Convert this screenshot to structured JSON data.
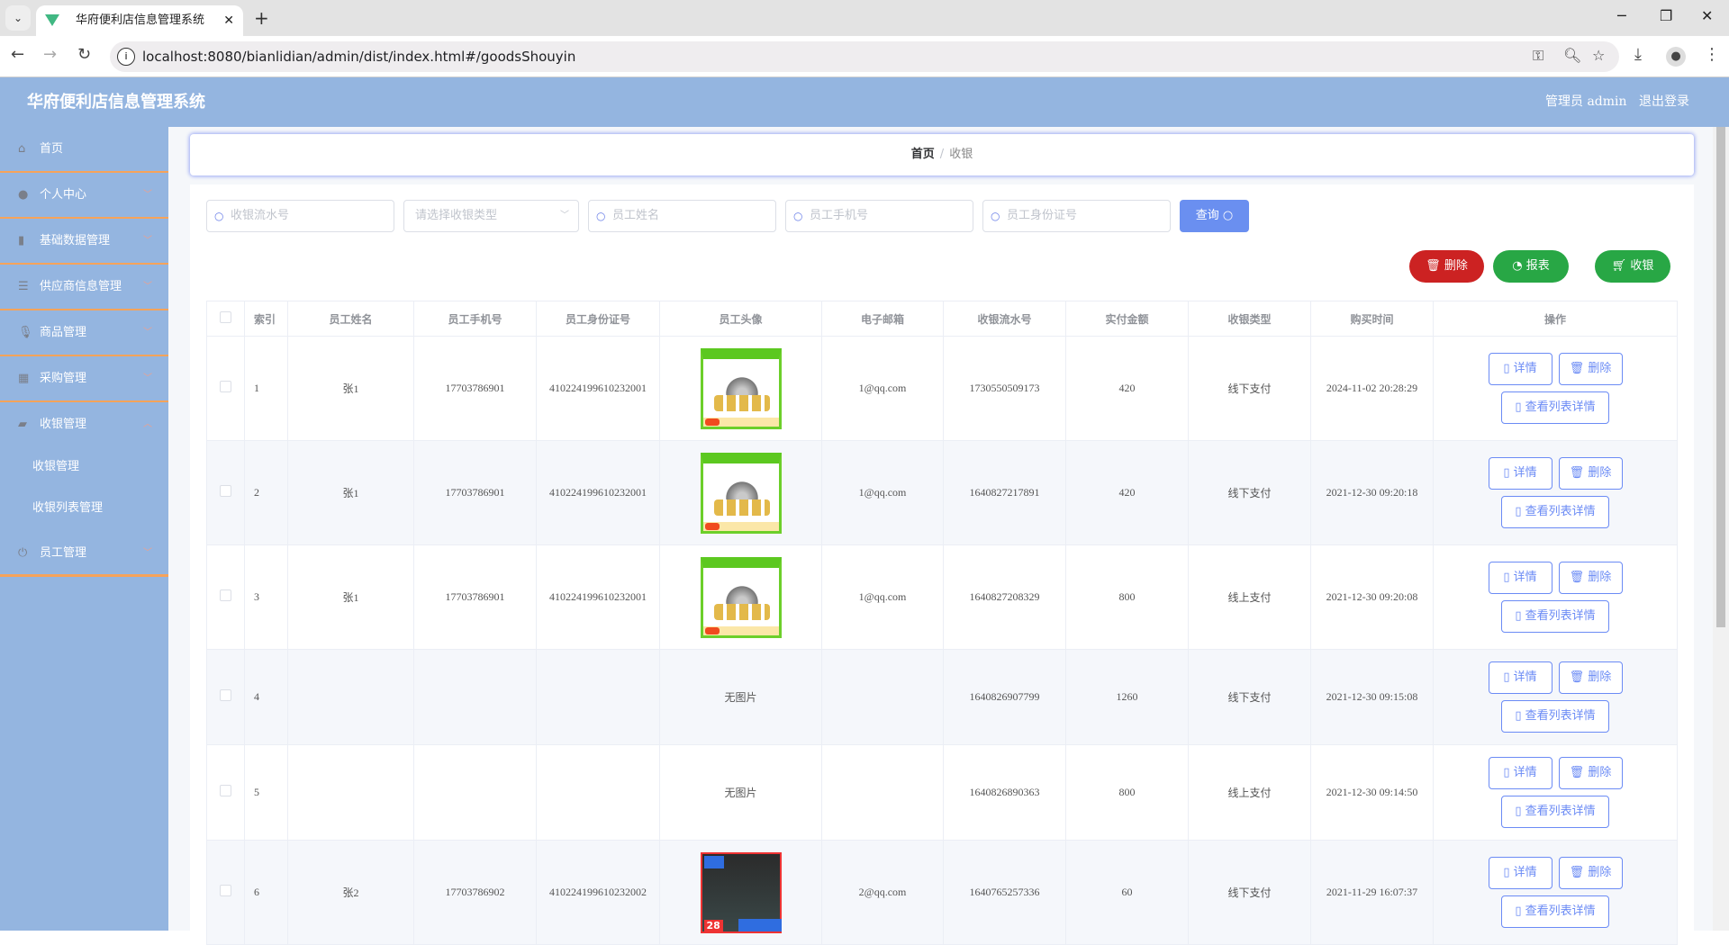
{
  "browser": {
    "tab_title": "华府便利店信息管理系统",
    "url": "localhost:8080/bianlidian/admin/dist/index.html#/goodsShouyin"
  },
  "header": {
    "title": "华府便利店信息管理系统",
    "user": "管理员 admin",
    "logout": "退出登录"
  },
  "sidebar": {
    "items": [
      {
        "label": "首页",
        "icon": "home-icon"
      },
      {
        "label": "个人中心",
        "icon": "user-icon"
      },
      {
        "label": "基础数据管理",
        "icon": "bar-chart-icon"
      },
      {
        "label": "供应商信息管理",
        "icon": "list-icon"
      },
      {
        "label": "商品管理",
        "icon": "microphone-icon"
      },
      {
        "label": "采购管理",
        "icon": "grid-icon"
      },
      {
        "label": "收银管理",
        "icon": "wallet-icon",
        "expanded": true
      },
      {
        "label": "员工管理",
        "icon": "power-icon"
      }
    ],
    "subitems": [
      {
        "label": "收银管理"
      },
      {
        "label": "收银列表管理"
      }
    ]
  },
  "breadcrumb": {
    "home": "首页",
    "current": "收银"
  },
  "search": {
    "serial_placeholder": "收银流水号",
    "type_placeholder": "请选择收银类型",
    "name_placeholder": "员工姓名",
    "phone_placeholder": "员工手机号",
    "idcard_placeholder": "员工身份证号",
    "query_label": "查询"
  },
  "actions": {
    "delete": "删除",
    "report": "报表",
    "cashier": "收银"
  },
  "colors": {
    "header": "#94b5e0",
    "accent": "#6b8bf5",
    "danger": "#cc2222",
    "success": "#28a745"
  },
  "table": {
    "columns": [
      "索引",
      "员工姓名",
      "员工手机号",
      "员工身份证号",
      "员工头像",
      "电子邮箱",
      "收银流水号",
      "实付金额",
      "收银类型",
      "购买时间",
      "操作"
    ],
    "no_image": "无图片",
    "op_detail": "详情",
    "op_delete": "删除",
    "op_list": "查看列表详情",
    "rows": [
      {
        "index": "1",
        "name": "张1",
        "phone": "17703786901",
        "idcard": "410224199610232001",
        "image": "tea-set-green",
        "email": "1@qq.com",
        "serial": "1730550509173",
        "amount": "420",
        "type": "线下支付",
        "time": "2024-11-02 20:28:29"
      },
      {
        "index": "2",
        "name": "张1",
        "phone": "17703786901",
        "idcard": "410224199610232001",
        "image": "tea-set-green",
        "email": "1@qq.com",
        "serial": "1640827217891",
        "amount": "420",
        "type": "线下支付",
        "time": "2021-12-30 09:20:18"
      },
      {
        "index": "3",
        "name": "张1",
        "phone": "17703786901",
        "idcard": "410224199610232001",
        "image": "tea-set-green",
        "email": "1@qq.com",
        "serial": "1640827208329",
        "amount": "800",
        "type": "线上支付",
        "time": "2021-12-30 09:20:08"
      },
      {
        "index": "4",
        "name": "",
        "phone": "",
        "idcard": "",
        "image": "",
        "email": "",
        "serial": "1640826907799",
        "amount": "1260",
        "type": "线下支付",
        "time": "2021-12-30 09:15:08"
      },
      {
        "index": "5",
        "name": "",
        "phone": "",
        "idcard": "",
        "image": "",
        "email": "",
        "serial": "1640826890363",
        "amount": "800",
        "type": "线上支付",
        "time": "2021-12-30 09:14:50"
      },
      {
        "index": "6",
        "name": "张2",
        "phone": "17703786902",
        "idcard": "410224199610232002",
        "image": "tea-set-dark",
        "email": "2@qq.com",
        "serial": "1640765257336",
        "amount": "60",
        "type": "线下支付",
        "time": "2021-11-29 16:07:37"
      }
    ]
  },
  "dark_thumb_price": "28"
}
